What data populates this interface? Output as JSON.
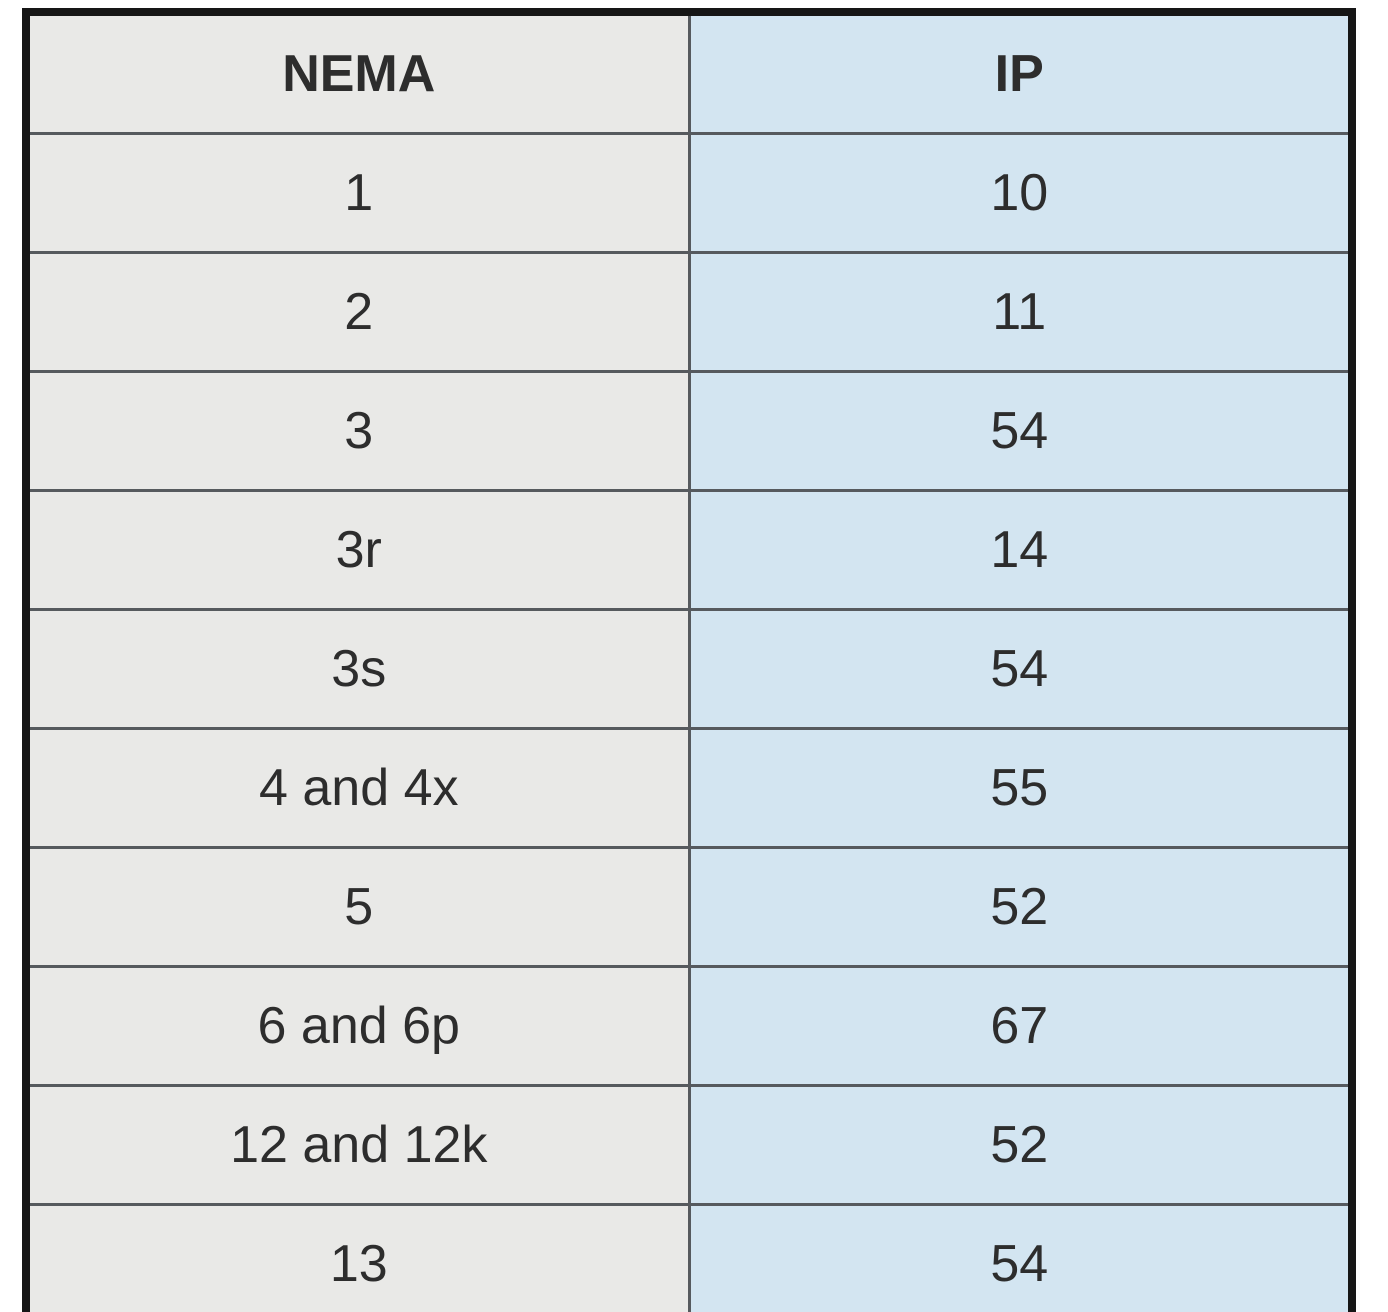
{
  "colors": {
    "page_bg": "#ffffff",
    "nema_col_bg": "#e9e9e7",
    "ip_col_bg": "#d3e5f1",
    "grid_line": "#565a5e",
    "outer_border": "#161616",
    "text": "#2d2d2d"
  },
  "chart_data": {
    "type": "table",
    "columns": [
      "NEMA",
      "IP"
    ],
    "rows": [
      [
        "1",
        "10"
      ],
      [
        "2",
        "11"
      ],
      [
        "3",
        "54"
      ],
      [
        "3r",
        "14"
      ],
      [
        "3s",
        "54"
      ],
      [
        "4 and 4x",
        "55"
      ],
      [
        "5",
        "52"
      ],
      [
        "6 and 6p",
        "67"
      ],
      [
        "12 and 12k",
        "52"
      ],
      [
        "13",
        "54"
      ]
    ],
    "layout": {
      "columns_count": 2,
      "rows_count": 10,
      "grid": "on",
      "header_bold": true
    }
  }
}
